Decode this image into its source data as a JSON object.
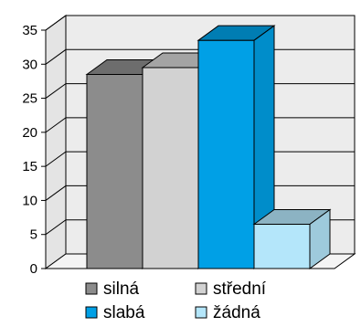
{
  "chart_data": {
    "type": "bar",
    "style": "3d",
    "categories": [
      ""
    ],
    "series": [
      {
        "name": "silná",
        "values": [
          28.5
        ],
        "color": "#8c8c8c"
      },
      {
        "name": "střední",
        "values": [
          29.5
        ],
        "color": "#d2d2d2"
      },
      {
        "name": "slabá",
        "values": [
          33.5
        ],
        "color": "#00a0e6"
      },
      {
        "name": "žádná",
        "values": [
          6.5
        ],
        "color": "#b4e6fa"
      }
    ],
    "ylim": [
      0,
      35
    ],
    "yticks": [
      "0",
      "5",
      "10",
      "15",
      "20",
      "25",
      "30",
      "35"
    ],
    "title": "",
    "xlabel": "",
    "ylabel": "",
    "grid": true,
    "legend": "bottom"
  }
}
